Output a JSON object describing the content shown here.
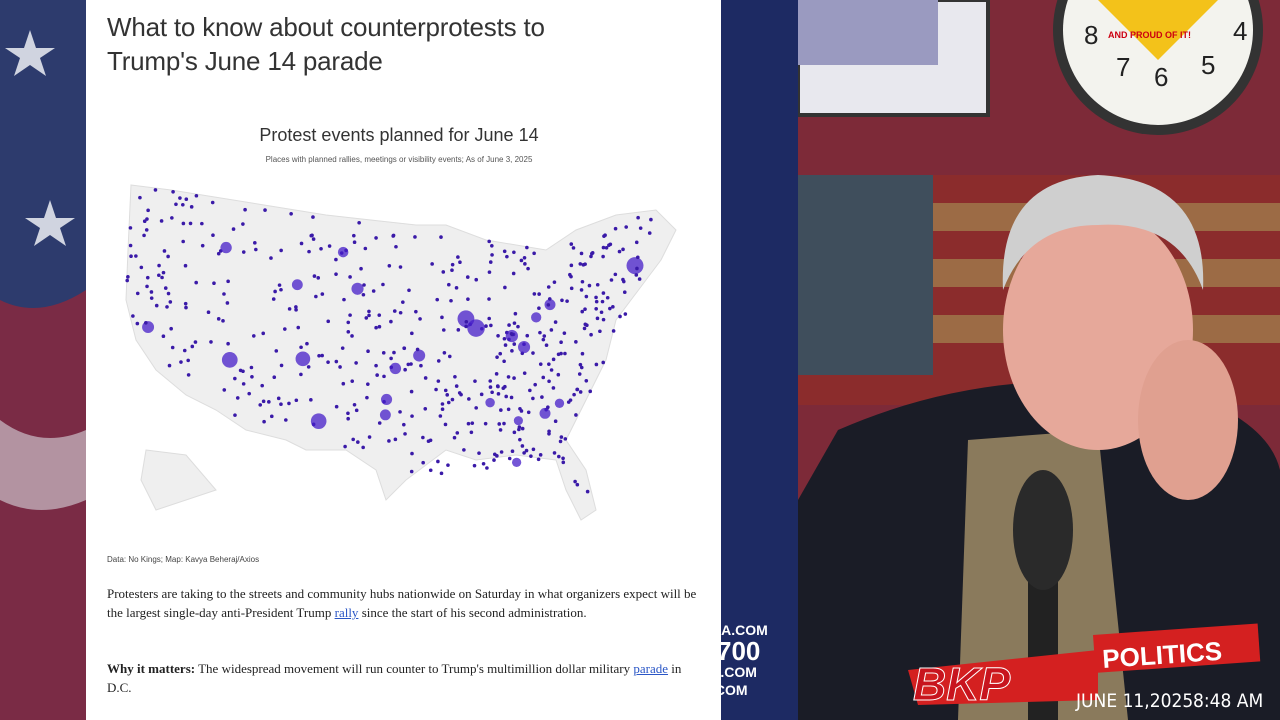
{
  "article": {
    "title_line1": "What to know about counterprotests to",
    "title_line2": "Trump's June 14 parade",
    "map_title": "Protest events planned for June 14",
    "map_subtitle": "Places with planned rallies, meetings or visibility events; As of June 3, 2025",
    "source": "Data: No Kings; Map: Kavya Beheraj/Axios",
    "paragraph1": {
      "before": "Protesters are taking to the streets and community hubs nationwide on Saturday in what organizers expect will be the largest single-day anti-President Trump ",
      "link": "rally",
      "after": " since the start of his second administration."
    },
    "paragraph2": {
      "lead": "Why it matters:",
      "before": " The widespread movement will run counter to Trump's multimillion dollar military ",
      "link": "parade",
      "after": " in D.C."
    }
  },
  "overlay": {
    "side_lines": [
      "CA.COM",
      "700",
      "S.COM",
      ".COM"
    ],
    "clock_numbers": [
      "8",
      "4",
      "7",
      "6",
      "5"
    ],
    "clock_badge": "AND PROUD OF IT!",
    "logo_main": "BKP",
    "logo_sub": "POLITICS",
    "date": "JUNE 11,2025",
    "time": "8:48 AM"
  }
}
